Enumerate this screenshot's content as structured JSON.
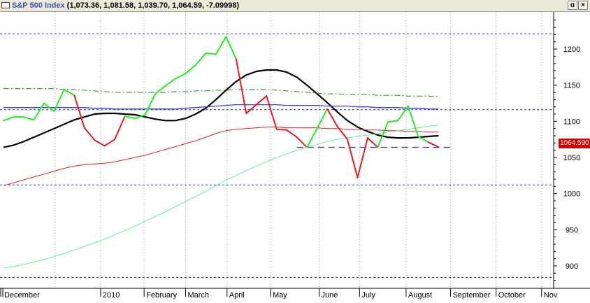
{
  "window": {
    "title_symbol": "S&P 500 Index",
    "title_values": " (1,073.36, 1,081.58, 1,039.70, 1,064.59, -7.09998)",
    "restore_label": "ɑ",
    "close_label": "×"
  },
  "last_price_label": "1064.590",
  "colors": {
    "price_up": "#22ee22",
    "price_down": "#e81e1e",
    "ma_black": "#000000",
    "ma_red": "#e02020",
    "ma_blue": "#3a3aee",
    "ma_green_dashdot": "#1a8a1a",
    "ma_light": "#66ee99",
    "level_lines": "#2a2acc"
  },
  "chart_data": {
    "type": "line",
    "title": "S&P 500 Index",
    "ohlc_last": {
      "open": 1073.36,
      "high": 1081.58,
      "low": 1039.7,
      "close": 1064.59,
      "change": -7.09998
    },
    "x_tick_labels": [
      "December",
      "2010",
      "February",
      "March",
      "April",
      "May",
      "June",
      "July",
      "August",
      "September",
      "October",
      "Nov"
    ],
    "y_ticks": [
      900,
      950,
      1000,
      1050,
      1100,
      1150,
      1200
    ],
    "ylim": [
      870,
      1245
    ],
    "grid": "vertical dotted at month boundaries",
    "price_series": {
      "name": "S&P 500 Index",
      "points": [
        {
          "x": 0,
          "y": 1101,
          "c": "up"
        },
        {
          "x": 1,
          "y": 1106,
          "c": "up"
        },
        {
          "x": 2,
          "y": 1106,
          "c": "up"
        },
        {
          "x": 3,
          "y": 1102,
          "c": "up"
        },
        {
          "x": 4,
          "y": 1125,
          "c": "up"
        },
        {
          "x": 5,
          "y": 1114,
          "c": "up"
        },
        {
          "x": 6,
          "y": 1144,
          "c": "up"
        },
        {
          "x": 7,
          "y": 1136,
          "c": "up"
        },
        {
          "x": 8,
          "y": 1091,
          "c": "down"
        },
        {
          "x": 9,
          "y": 1074,
          "c": "down"
        },
        {
          "x": 10,
          "y": 1066,
          "c": "down"
        },
        {
          "x": 11,
          "y": 1075,
          "c": "down"
        },
        {
          "x": 12,
          "y": 1107,
          "c": "down"
        },
        {
          "x": 13,
          "y": 1104,
          "c": "up"
        },
        {
          "x": 14,
          "y": 1109,
          "c": "up"
        },
        {
          "x": 15,
          "y": 1138,
          "c": "up"
        },
        {
          "x": 16,
          "y": 1149,
          "c": "up"
        },
        {
          "x": 17,
          "y": 1159,
          "c": "up"
        },
        {
          "x": 18,
          "y": 1166,
          "c": "up"
        },
        {
          "x": 19,
          "y": 1178,
          "c": "up"
        },
        {
          "x": 20,
          "y": 1194,
          "c": "up"
        },
        {
          "x": 21,
          "y": 1193,
          "c": "up"
        },
        {
          "x": 22,
          "y": 1217,
          "c": "up"
        },
        {
          "x": 23,
          "y": 1186,
          "c": "up"
        },
        {
          "x": 24,
          "y": 1111,
          "c": "down"
        },
        {
          "x": 25,
          "y": 1123,
          "c": "down"
        },
        {
          "x": 26,
          "y": 1135,
          "c": "down"
        },
        {
          "x": 27,
          "y": 1089,
          "c": "down"
        },
        {
          "x": 28,
          "y": 1088,
          "c": "down"
        },
        {
          "x": 29,
          "y": 1078,
          "c": "down"
        },
        {
          "x": 30,
          "y": 1064,
          "c": "down"
        },
        {
          "x": 31,
          "y": 1090,
          "c": "up"
        },
        {
          "x": 32,
          "y": 1117,
          "c": "up"
        },
        {
          "x": 33,
          "y": 1093,
          "c": "down"
        },
        {
          "x": 34,
          "y": 1075,
          "c": "down"
        },
        {
          "x": 35,
          "y": 1022,
          "c": "down"
        },
        {
          "x": 36,
          "y": 1077,
          "c": "down"
        },
        {
          "x": 37,
          "y": 1064,
          "c": "down"
        },
        {
          "x": 38,
          "y": 1099,
          "c": "up"
        },
        {
          "x": 39,
          "y": 1101,
          "c": "up"
        },
        {
          "x": 40,
          "y": 1121,
          "c": "up"
        },
        {
          "x": 41,
          "y": 1079,
          "c": "up"
        },
        {
          "x": 42,
          "y": 1071,
          "c": "up"
        },
        {
          "x": 43,
          "y": 1064.59,
          "c": "down"
        }
      ]
    },
    "moving_averages": [
      {
        "key": "black",
        "values": [
          1064,
          1067,
          1072,
          1078,
          1084,
          1090,
          1096,
          1102,
          1106,
          1110,
          1111,
          1111,
          1110,
          1109,
          1106,
          1103,
          1101,
          1101,
          1104,
          1110,
          1118,
          1130,
          1143,
          1155,
          1164,
          1169,
          1171,
          1171,
          1168,
          1161,
          1150,
          1138,
          1126,
          1113,
          1101,
          1092,
          1086,
          1081,
          1078,
          1077,
          1077,
          1078,
          1079,
          1080
        ]
      },
      {
        "key": "red",
        "values": [
          1011,
          1015,
          1019,
          1023,
          1027,
          1031,
          1035,
          1038,
          1040,
          1041,
          1042,
          1044,
          1047,
          1050,
          1053,
          1057,
          1061,
          1065,
          1069,
          1073,
          1078,
          1083,
          1087,
          1089,
          1090,
          1091,
          1092,
          1092,
          1091,
          1091,
          1091,
          1091,
          1090,
          1090,
          1089,
          1089,
          1088,
          1088,
          1087,
          1087,
          1086,
          1086,
          1085,
          1085
        ]
      },
      {
        "key": "blue",
        "values": [
          1119,
          1119,
          1119,
          1119,
          1119,
          1119,
          1119,
          1119,
          1119,
          1118,
          1118,
          1117,
          1117,
          1117,
          1117,
          1117,
          1117,
          1117,
          1118,
          1119,
          1120,
          1121,
          1122,
          1123,
          1123,
          1123,
          1123,
          1123,
          1122,
          1122,
          1122,
          1122,
          1121,
          1121,
          1121,
          1120,
          1120,
          1119,
          1119,
          1119,
          1118,
          1118,
          1117,
          1117
        ]
      },
      {
        "key": "green_dashdot",
        "values": [
          1145,
          1145,
          1145,
          1145,
          1145,
          1145,
          1144,
          1144,
          1143,
          1142,
          1141,
          1140,
          1140,
          1140,
          1140,
          1140,
          1140,
          1141,
          1141,
          1142,
          1142,
          1143,
          1143,
          1144,
          1144,
          1144,
          1144,
          1143,
          1142,
          1141,
          1140,
          1139,
          1138,
          1138,
          1137,
          1137,
          1137,
          1136,
          1136,
          1136,
          1135,
          1135,
          1135,
          1134
        ]
      },
      {
        "key": "light",
        "values": [
          897,
          899,
          902,
          905,
          909,
          913,
          917,
          922,
          927,
          932,
          937,
          943,
          949,
          955,
          962,
          968,
          975,
          982,
          989,
          996,
          1003,
          1011,
          1019,
          1025,
          1032,
          1038,
          1044,
          1050,
          1055,
          1060,
          1064,
          1068,
          1072,
          1075,
          1077,
          1079,
          1081,
          1083,
          1085,
          1087,
          1089,
          1091,
          1093,
          1095
        ]
      }
    ],
    "horizontal_levels": [
      {
        "y": 1221,
        "style": "dotted"
      },
      {
        "y": 1116,
        "style": "dotted"
      },
      {
        "y": 1012,
        "style": "dotted"
      },
      {
        "y": 884,
        "style": "dotted"
      },
      {
        "y": 1064,
        "style": "dashed",
        "x_from": 29,
        "x_to": 46
      }
    ],
    "month_grid_x": [
      5.1,
      9.6,
      13.9,
      18.0,
      22.1,
      26.4,
      31.2,
      35.2,
      39.8,
      44.2,
      48.7,
      53.2
    ]
  }
}
